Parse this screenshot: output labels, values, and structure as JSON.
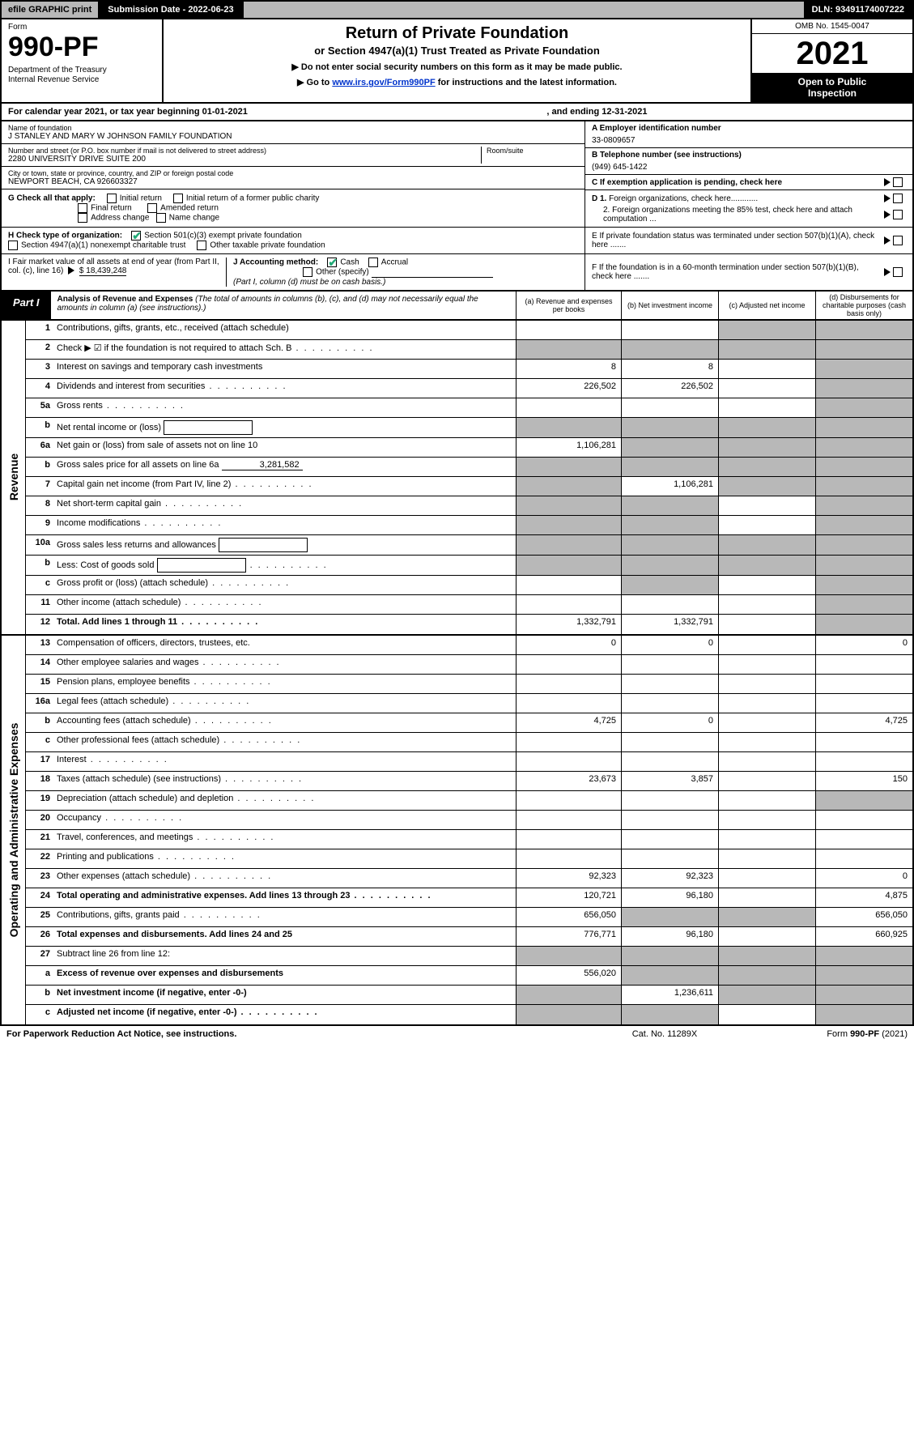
{
  "topbar": {
    "efile": "efile GRAPHIC print",
    "submission_label": "Submission Date - 2022-06-23",
    "dln": "DLN: 93491174007222"
  },
  "header": {
    "form_word": "Form",
    "form_number": "990-PF",
    "dept1": "Department of the Treasury",
    "dept2": "Internal Revenue Service",
    "title": "Return of Private Foundation",
    "subtitle": "or Section 4947(a)(1) Trust Treated as Private Foundation",
    "note1": "▶ Do not enter social security numbers on this form as it may be made public.",
    "note2_pre": "▶ Go to ",
    "note2_link": "www.irs.gov/Form990PF",
    "note2_post": " for instructions and the latest information.",
    "omb": "OMB No. 1545-0047",
    "year": "2021",
    "open1": "Open to Public",
    "open2": "Inspection"
  },
  "calyear": {
    "left": "For calendar year 2021, or tax year beginning 01-01-2021",
    "right": ", and ending 12-31-2021"
  },
  "info": {
    "name_label": "Name of foundation",
    "name": "J STANLEY AND MARY W JOHNSON FAMILY FOUNDATION",
    "addr_label": "Number and street (or P.O. box number if mail is not delivered to street address)",
    "addr": "2280 UNIVERSITY DRIVE SUITE 200",
    "room_label": "Room/suite",
    "city_label": "City or town, state or province, country, and ZIP or foreign postal code",
    "city": "NEWPORT BEACH, CA  926603327",
    "a_label": "A Employer identification number",
    "a_val": "33-0809657",
    "b_label": "B Telephone number (see instructions)",
    "b_val": "(949) 645-1422",
    "c_label": "C If exemption application is pending, check here",
    "d1": "D 1. Foreign organizations, check here............",
    "d2": "2. Foreign organizations meeting the 85% test, check here and attach computation ...",
    "e": "E  If private foundation status was terminated under section 507(b)(1)(A), check here .......",
    "f": "F  If the foundation is in a 60-month termination under section 507(b)(1)(B), check here .......",
    "g_label": "G Check all that apply:",
    "g_opts": [
      "Initial return",
      "Initial return of a former public charity",
      "Final return",
      "Amended return",
      "Address change",
      "Name change"
    ],
    "h_label": "H Check type of organization:",
    "h1": "Section 501(c)(3) exempt private foundation",
    "h2": "Section 4947(a)(1) nonexempt charitable trust",
    "h3": "Other taxable private foundation",
    "i_label": "I Fair market value of all assets at end of year (from Part II, col. (c), line 16)",
    "i_val": "$  18,439,248",
    "j_label": "J Accounting method:",
    "j_cash": "Cash",
    "j_accrual": "Accrual",
    "j_other": "Other (specify)",
    "j_note": "(Part I, column (d) must be on cash basis.)"
  },
  "part1": {
    "tab": "Part I",
    "title": "Analysis of Revenue and Expenses",
    "title_note": " (The total of amounts in columns (b), (c), and (d) may not necessarily equal the amounts in column (a) (see instructions).)",
    "col_a": "(a)   Revenue and expenses per books",
    "col_b": "(b)   Net investment income",
    "col_c": "(c)   Adjusted net income",
    "col_d": "(d)   Disbursements for charitable purposes (cash basis only)"
  },
  "sidelabels": {
    "revenue": "Revenue",
    "expenses": "Operating and Administrative Expenses"
  },
  "rows": [
    {
      "n": "1",
      "d": "Contributions, gifts, grants, etc., received (attach schedule)",
      "a": "",
      "b": "",
      "c": "g",
      "dd": "g"
    },
    {
      "n": "2",
      "d": "Check ▶ ☑ if the foundation is not required to attach Sch. B",
      "dots": true,
      "a": "g",
      "b": "g",
      "c": "g",
      "dd": "g",
      "checked": true
    },
    {
      "n": "3",
      "d": "Interest on savings and temporary cash investments",
      "a": "8",
      "b": "8",
      "c": "",
      "dd": "g"
    },
    {
      "n": "4",
      "d": "Dividends and interest from securities",
      "dots": true,
      "a": "226,502",
      "b": "226,502",
      "c": "",
      "dd": "g"
    },
    {
      "n": "5a",
      "d": "Gross rents",
      "dots": true,
      "a": "",
      "b": "",
      "c": "",
      "dd": "g"
    },
    {
      "n": "b",
      "d": "Net rental income or (loss)",
      "blank": true,
      "a": "g",
      "b": "g",
      "c": "g",
      "dd": "g"
    },
    {
      "n": "6a",
      "d": "Net gain or (loss) from sale of assets not on line 10",
      "a": "1,106,281",
      "b": "g",
      "c": "g",
      "dd": "g"
    },
    {
      "n": "b",
      "d": "Gross sales price for all assets on line 6a",
      "iv": "3,281,582",
      "a": "g",
      "b": "g",
      "c": "g",
      "dd": "g"
    },
    {
      "n": "7",
      "d": "Capital gain net income (from Part IV, line 2)",
      "dots": true,
      "a": "g",
      "b": "1,106,281",
      "c": "g",
      "dd": "g"
    },
    {
      "n": "8",
      "d": "Net short-term capital gain",
      "dots": true,
      "a": "g",
      "b": "g",
      "c": "",
      "dd": "g"
    },
    {
      "n": "9",
      "d": "Income modifications",
      "dots": true,
      "a": "g",
      "b": "g",
      "c": "",
      "dd": "g"
    },
    {
      "n": "10a",
      "d": "Gross sales less returns and allowances",
      "blank": true,
      "a": "g",
      "b": "g",
      "c": "g",
      "dd": "g"
    },
    {
      "n": "b",
      "d": "Less: Cost of goods sold",
      "dots": true,
      "blank": true,
      "a": "g",
      "b": "g",
      "c": "g",
      "dd": "g"
    },
    {
      "n": "c",
      "d": "Gross profit or (loss) (attach schedule)",
      "dots": true,
      "a": "",
      "b": "g",
      "c": "",
      "dd": "g"
    },
    {
      "n": "11",
      "d": "Other income (attach schedule)",
      "dots": true,
      "a": "",
      "b": "",
      "c": "",
      "dd": "g"
    },
    {
      "n": "12",
      "d": "Total. Add lines 1 through 11",
      "dots": true,
      "bold": true,
      "a": "1,332,791",
      "b": "1,332,791",
      "c": "",
      "dd": "g"
    }
  ],
  "exprows": [
    {
      "n": "13",
      "d": "Compensation of officers, directors, trustees, etc.",
      "a": "0",
      "b": "0",
      "c": "",
      "dd": "0"
    },
    {
      "n": "14",
      "d": "Other employee salaries and wages",
      "dots": true,
      "a": "",
      "b": "",
      "c": "",
      "dd": ""
    },
    {
      "n": "15",
      "d": "Pension plans, employee benefits",
      "dots": true,
      "a": "",
      "b": "",
      "c": "",
      "dd": ""
    },
    {
      "n": "16a",
      "d": "Legal fees (attach schedule)",
      "dots": true,
      "a": "",
      "b": "",
      "c": "",
      "dd": ""
    },
    {
      "n": "b",
      "d": "Accounting fees (attach schedule)",
      "dots": true,
      "a": "4,725",
      "b": "0",
      "c": "",
      "dd": "4,725"
    },
    {
      "n": "c",
      "d": "Other professional fees (attach schedule)",
      "dots": true,
      "a": "",
      "b": "",
      "c": "",
      "dd": ""
    },
    {
      "n": "17",
      "d": "Interest",
      "dots": true,
      "a": "",
      "b": "",
      "c": "",
      "dd": ""
    },
    {
      "n": "18",
      "d": "Taxes (attach schedule) (see instructions)",
      "dots": true,
      "a": "23,673",
      "b": "3,857",
      "c": "",
      "dd": "150"
    },
    {
      "n": "19",
      "d": "Depreciation (attach schedule) and depletion",
      "dots": true,
      "a": "",
      "b": "",
      "c": "",
      "dd": "g"
    },
    {
      "n": "20",
      "d": "Occupancy",
      "dots": true,
      "a": "",
      "b": "",
      "c": "",
      "dd": ""
    },
    {
      "n": "21",
      "d": "Travel, conferences, and meetings",
      "dots": true,
      "a": "",
      "b": "",
      "c": "",
      "dd": ""
    },
    {
      "n": "22",
      "d": "Printing and publications",
      "dots": true,
      "a": "",
      "b": "",
      "c": "",
      "dd": ""
    },
    {
      "n": "23",
      "d": "Other expenses (attach schedule)",
      "dots": true,
      "a": "92,323",
      "b": "92,323",
      "c": "",
      "dd": "0"
    },
    {
      "n": "24",
      "d": "Total operating and administrative expenses. Add lines 13 through 23",
      "dots": true,
      "bold": true,
      "a": "120,721",
      "b": "96,180",
      "c": "",
      "dd": "4,875"
    },
    {
      "n": "25",
      "d": "Contributions, gifts, grants paid",
      "dots": true,
      "a": "656,050",
      "b": "g",
      "c": "g",
      "dd": "656,050"
    },
    {
      "n": "26",
      "d": "Total expenses and disbursements. Add lines 24 and 25",
      "bold": true,
      "a": "776,771",
      "b": "96,180",
      "c": "",
      "dd": "660,925"
    },
    {
      "n": "27",
      "d": "Subtract line 26 from line 12:",
      "a": "g",
      "b": "g",
      "c": "g",
      "dd": "g"
    },
    {
      "n": "a",
      "d": "Excess of revenue over expenses and disbursements",
      "bold": true,
      "a": "556,020",
      "b": "g",
      "c": "g",
      "dd": "g"
    },
    {
      "n": "b",
      "d": "Net investment income (if negative, enter -0-)",
      "bold": true,
      "a": "g",
      "b": "1,236,611",
      "c": "g",
      "dd": "g"
    },
    {
      "n": "c",
      "d": "Adjusted net income (if negative, enter -0-)",
      "bold": true,
      "dots": true,
      "a": "g",
      "b": "g",
      "c": "",
      "dd": "g"
    }
  ],
  "footer": {
    "left": "For Paperwork Reduction Act Notice, see instructions.",
    "mid": "Cat. No. 11289X",
    "right": "Form 990-PF (2021)"
  },
  "colors": {
    "grey": "#b8b8b8",
    "check": "#2a7"
  }
}
